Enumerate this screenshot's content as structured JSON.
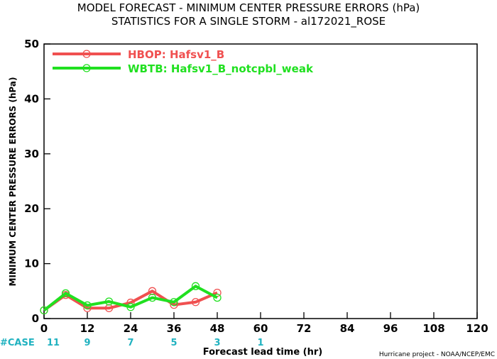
{
  "chart_data": {
    "type": "line",
    "title": "MODEL FORECAST - MINIMUM CENTER PRESSURE ERRORS (hPa)",
    "subtitle": "STATISTICS FOR A SINGLE STORM - al172021_ROSE",
    "xlabel": "Forecast lead time (hr)",
    "ylabel": "MINIMUM CENTER PRESSURE ERRORS (hPa)",
    "xlim": [
      0,
      120
    ],
    "ylim": [
      0,
      50
    ],
    "x_ticks": [
      0,
      12,
      24,
      36,
      48,
      60,
      72,
      84,
      96,
      108,
      120
    ],
    "y_ticks": [
      0,
      10,
      20,
      30,
      40,
      50
    ],
    "grid": false,
    "legend_position": "top-left",
    "series": [
      {
        "name": "HBOP: Hafsv1_B",
        "color": "#f05050",
        "x": [
          0,
          6,
          12,
          18,
          24,
          30,
          36,
          42,
          48
        ],
        "y": [
          1.5,
          4.3,
          1.9,
          1.9,
          2.9,
          5.0,
          2.5,
          3.0,
          4.7
        ]
      },
      {
        "name": "WBTB: Hafsv1_B_notcpbl_weak",
        "color": "#20e020",
        "x": [
          0,
          6,
          12,
          18,
          24,
          30,
          36,
          42,
          48
        ],
        "y": [
          1.5,
          4.6,
          2.4,
          3.1,
          2.1,
          3.8,
          3.0,
          5.9,
          3.8
        ]
      }
    ],
    "case_label": "#CASE",
    "case_counts": [
      {
        "x": 0,
        "n": "11"
      },
      {
        "x": 12,
        "n": "9"
      },
      {
        "x": 24,
        "n": "7"
      },
      {
        "x": 36,
        "n": "5"
      },
      {
        "x": 48,
        "n": "3"
      },
      {
        "x": 60,
        "n": "1"
      }
    ],
    "credit": "Hurricane project - NOAA/NCEP/EMC"
  }
}
